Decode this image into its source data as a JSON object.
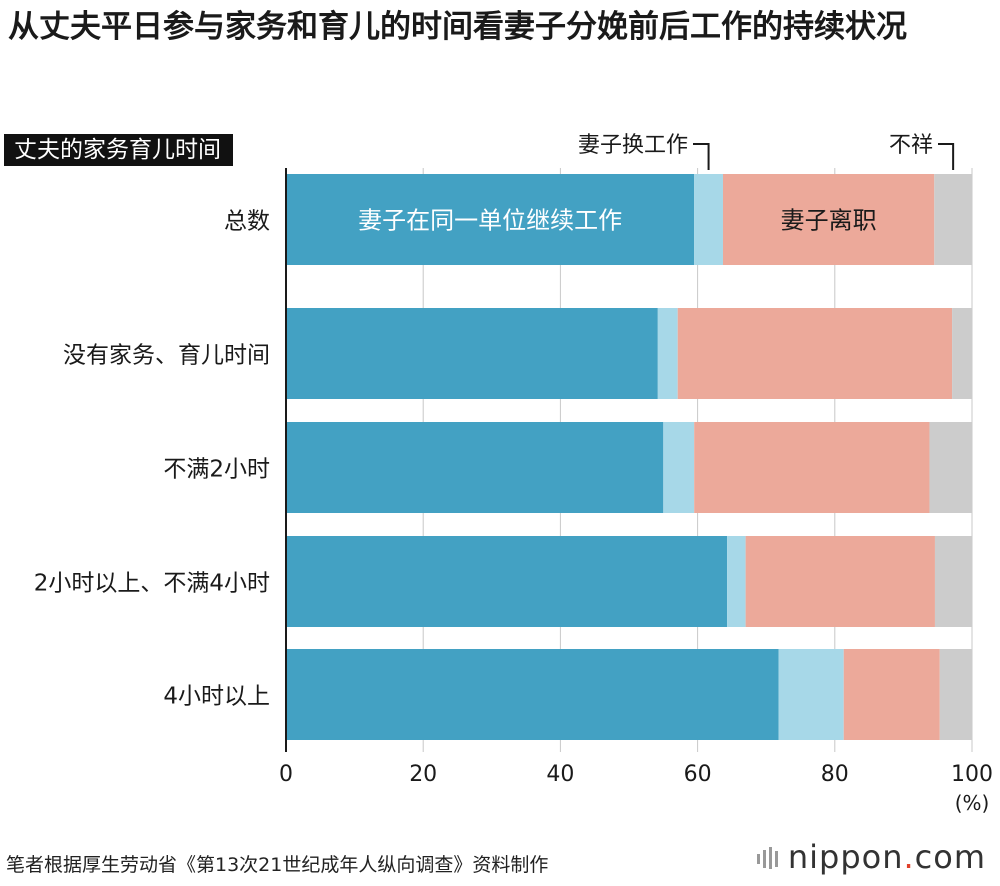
{
  "title": "从丈夫平日参与家务和育儿的时间看妻子分娩前后工作的持续状况",
  "category_header": "丈夫的家务育儿时间",
  "source": "笔者根据厚生劳动省《第13次21世纪成年人纵向调查》资料制作",
  "logo": {
    "name": "nippon",
    "dot": ".",
    "suffix": "com"
  },
  "colors": {
    "same_employer": "#43a1c3",
    "changed_job": "#a7d8e8",
    "left_job": "#eca99a",
    "unknown": "#cccccc"
  },
  "chart_data": {
    "type": "bar",
    "orientation": "horizontal",
    "stacked": true,
    "categories": [
      "总数",
      "没有家务、育儿时间",
      "不满2小时",
      "2小时以上、不满4小时",
      "4小时以上"
    ],
    "series": [
      {
        "name": "妻子在同一单位继续工作",
        "values": [
          59.5,
          54.2,
          55.0,
          64.3,
          71.8
        ],
        "color": "#43a1c3"
      },
      {
        "name": "妻子换工作",
        "values": [
          4.2,
          2.9,
          4.5,
          2.7,
          9.5
        ],
        "color": "#a7d8e8"
      },
      {
        "name": "妻子离职",
        "values": [
          30.8,
          40.0,
          34.3,
          27.6,
          14.0
        ],
        "color": "#eca99a"
      },
      {
        "name": "不祥",
        "values": [
          5.5,
          2.9,
          6.2,
          5.4,
          4.7
        ],
        "color": "#cccccc"
      }
    ],
    "inline_labels": {
      "same_employer": "妻子在同一单位继续工作",
      "left_job": "妻子离职"
    },
    "callout_labels": {
      "changed_job": "妻子换工作",
      "unknown": "不祥"
    },
    "xlim": [
      0,
      100
    ],
    "xticks": [
      0,
      20,
      40,
      60,
      80,
      100
    ],
    "xlabel": "(%)",
    "grid": true
  }
}
